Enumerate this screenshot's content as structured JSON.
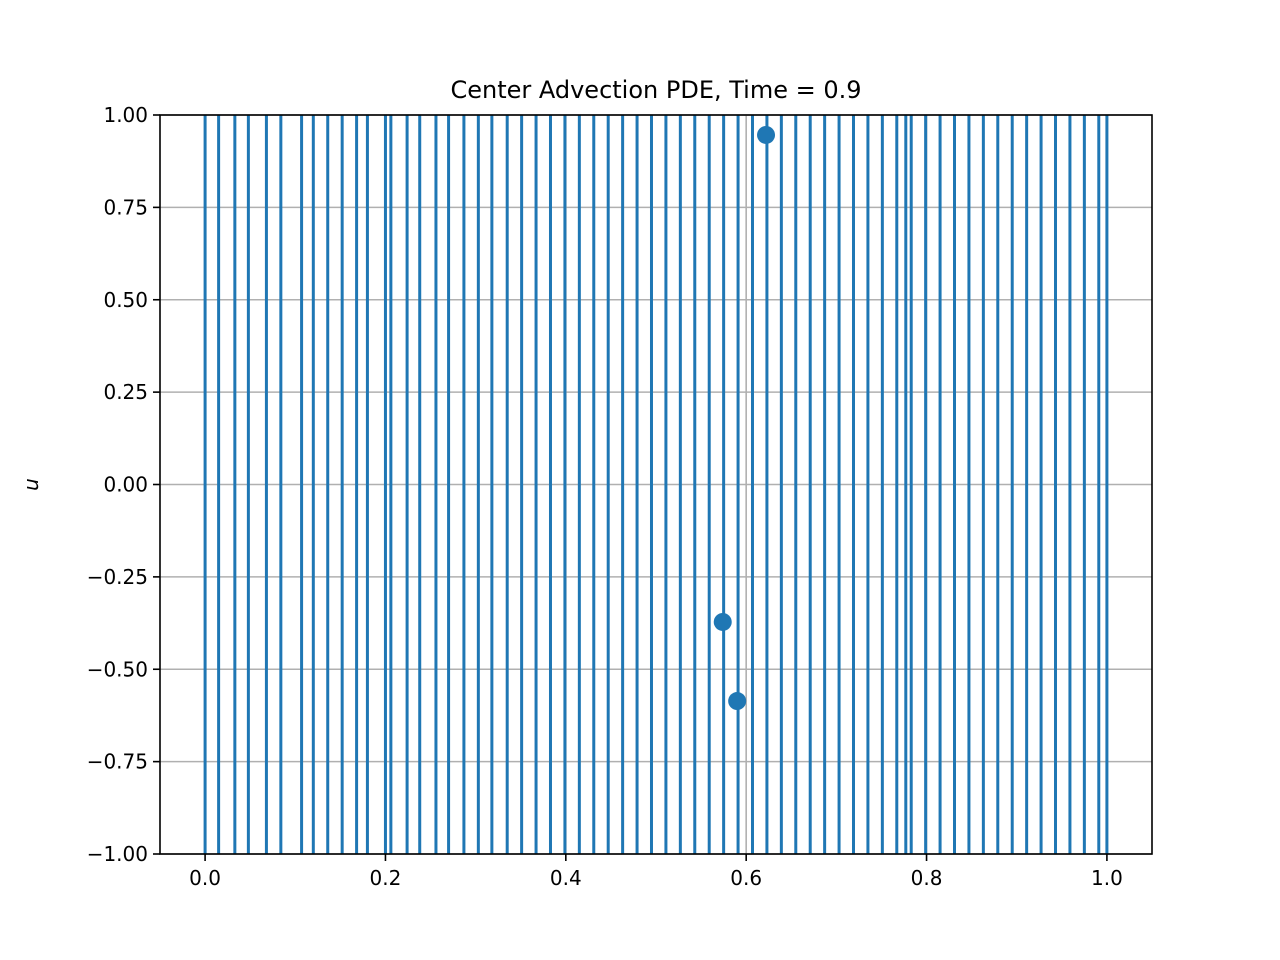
{
  "chart_data": {
    "type": "line",
    "title": "Center Advection PDE, Time = 0.9",
    "xlabel": "",
    "ylabel": "u",
    "xlim": [
      -0.05,
      1.05
    ],
    "ylim": [
      -1.0,
      1.0
    ],
    "grid": true,
    "x_ticks": [
      0.0,
      0.2,
      0.4,
      0.6,
      0.8,
      1.0
    ],
    "x_tick_labels": [
      "0.0",
      "0.2",
      "0.4",
      "0.6",
      "0.8",
      "1.0"
    ],
    "y_ticks": [
      1.0,
      0.75,
      0.5,
      0.25,
      0.0,
      -0.25,
      -0.5,
      -0.75,
      -1.0
    ],
    "y_tick_labels": [
      "1.00",
      "0.75",
      "0.50",
      "0.25",
      "0.00",
      "−0.25",
      "−0.50",
      "−0.75",
      "−1.00"
    ],
    "line_color": "#1f77b4",
    "vertical_line_x": [
      0.0,
      0.015,
      0.033,
      0.048,
      0.068,
      0.084,
      0.107,
      0.12,
      0.136,
      0.152,
      0.168,
      0.18,
      0.2,
      0.206,
      0.224,
      0.238,
      0.256,
      0.27,
      0.287,
      0.303,
      0.318,
      0.335,
      0.351,
      0.367,
      0.383,
      0.399,
      0.415,
      0.431,
      0.447,
      0.463,
      0.479,
      0.495,
      0.511,
      0.527,
      0.543,
      0.559,
      0.575,
      0.591,
      0.607,
      0.623,
      0.639,
      0.655,
      0.671,
      0.687,
      0.703,
      0.719,
      0.735,
      0.751,
      0.767,
      0.777,
      0.783,
      0.799,
      0.815,
      0.831,
      0.847,
      0.863,
      0.879,
      0.895,
      0.911,
      0.927,
      0.943,
      0.959,
      0.975,
      0.991,
      1.0
    ],
    "points": [
      {
        "x": 0.574,
        "y": -0.372
      },
      {
        "x": 0.59,
        "y": -0.586
      },
      {
        "x": 0.622,
        "y": 0.946
      }
    ]
  }
}
